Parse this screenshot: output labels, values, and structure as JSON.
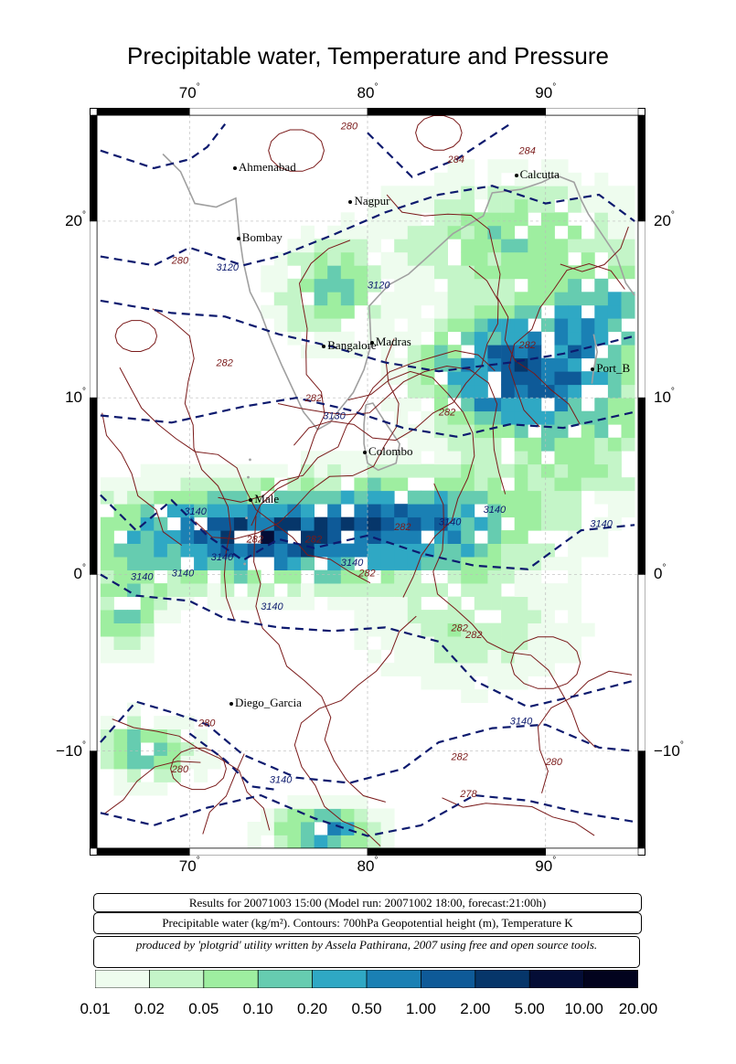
{
  "title": "Precipitable water, Temperature and Pressure",
  "map": {
    "lon_labels": [
      "70",
      "80",
      "90"
    ],
    "lat_labels": [
      "20",
      "10",
      "0",
      "−10"
    ],
    "degree_symbol": "°",
    "cities": [
      {
        "name": "Ahmenabad"
      },
      {
        "name": "Calcutta"
      },
      {
        "name": "Nagpur"
      },
      {
        "name": "Bombay"
      },
      {
        "name": "Madras"
      },
      {
        "name": "Bangalore"
      },
      {
        "name": "Port_B"
      },
      {
        "name": "Colombo"
      },
      {
        "name": "Male"
      },
      {
        "name": "Diego_Garcia"
      }
    ],
    "contour_labels": [
      "280",
      "284",
      "284",
      "3120",
      "280",
      "3120",
      "282",
      "282",
      "282",
      "3130",
      "282",
      "3140",
      "3140",
      "282",
      "282",
      "3140",
      "3140",
      "3140",
      "3140",
      "3140",
      "282",
      "282",
      "3140",
      "282",
      "282",
      "3140",
      "3140",
      "280",
      "280",
      "3140",
      "278",
      "282",
      "280"
    ],
    "colors": {
      "temperature_contour": "#7a1a1a",
      "height_contour": "#0d1a6e",
      "coast": "#a0a0a0"
    }
  },
  "info": {
    "line1": "Results for 20071003 15:00 (Model run: 20071002 18:00, forecast:21:00h)",
    "line2": "Precipitable water (kg/m²).  Contours: 700hPa Geopotential height (m), Temperature K",
    "line3": "produced by 'plotgrid' utility written by Assela Pathirana, 2007 using free and open source tools."
  },
  "legend": {
    "labels": [
      "0.01",
      "0.02",
      "0.05",
      "0.10",
      "0.20",
      "0.50",
      "1.00",
      "2.00",
      "5.00",
      "10.00",
      "20.00"
    ],
    "colors": [
      "#eefcee",
      "#c4f5c8",
      "#9eeea0",
      "#66ccb0",
      "#2fa8c4",
      "#1a80b4",
      "#0e5a98",
      "#06366a",
      "#040d36",
      "#02031e"
    ]
  }
}
